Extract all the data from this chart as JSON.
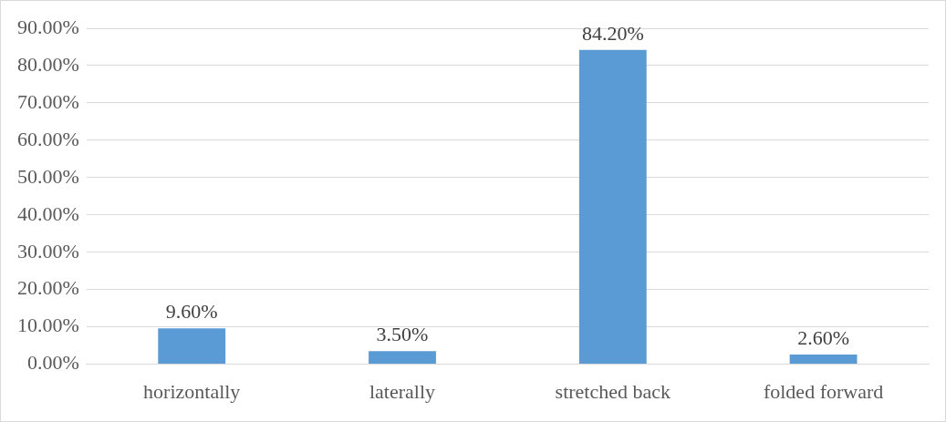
{
  "chart_data": {
    "type": "bar",
    "categories": [
      "horizontally",
      "laterally",
      "stretched back",
      "folded forward"
    ],
    "values": [
      9.6,
      3.5,
      84.2,
      2.6
    ],
    "color": "#5b9bd5",
    "value_labels": [
      "9.60%",
      "3.50%",
      "84.20%",
      "2.60%"
    ],
    "ylim": [
      0,
      90
    ],
    "yticks": [
      {
        "value": 0,
        "label": "0.00%"
      },
      {
        "value": 10,
        "label": "10.00%"
      },
      {
        "value": 20,
        "label": "20.00%"
      },
      {
        "value": 30,
        "label": "30.00%"
      },
      {
        "value": 40,
        "label": "40.00%"
      },
      {
        "value": 50,
        "label": "50.00%"
      },
      {
        "value": 60,
        "label": "60.00%"
      },
      {
        "value": 70,
        "label": "70.00%"
      },
      {
        "value": 80,
        "label": "80.00%"
      },
      {
        "value": 90,
        "label": "90.00%"
      }
    ],
    "grid": "y",
    "legend": false
  }
}
